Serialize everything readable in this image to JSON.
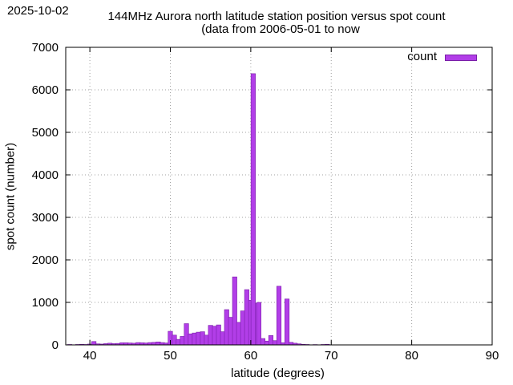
{
  "date_stamp": "2025-10-02",
  "chart_data": {
    "type": "bar",
    "title": "144MHz Aurora north latitude station position versus spot count",
    "subtitle": "(data from 2006-05-01 to now",
    "xlabel": "latitude (degrees)",
    "ylabel": "spot count (number)",
    "xlim": [
      37,
      90
    ],
    "ylim": [
      0,
      7000
    ],
    "xticks": [
      40,
      50,
      60,
      70,
      80,
      90
    ],
    "yticks": [
      0,
      1000,
      2000,
      3000,
      4000,
      5000,
      6000,
      7000
    ],
    "grid": true,
    "legend_position": "top-right",
    "bar_color": "#b23ee8",
    "series": [
      {
        "name": "count",
        "points": [
          [
            37.5,
            10
          ],
          [
            38.5,
            10
          ],
          [
            39.0,
            15
          ],
          [
            39.5,
            10
          ],
          [
            40.0,
            20
          ],
          [
            40.5,
            80
          ],
          [
            41.0,
            25
          ],
          [
            41.5,
            20
          ],
          [
            42.0,
            30
          ],
          [
            42.5,
            40
          ],
          [
            43.0,
            30
          ],
          [
            43.5,
            35
          ],
          [
            44.0,
            50
          ],
          [
            44.5,
            50
          ],
          [
            45.0,
            45
          ],
          [
            45.5,
            40
          ],
          [
            46.0,
            55
          ],
          [
            46.5,
            50
          ],
          [
            47.0,
            45
          ],
          [
            47.5,
            55
          ],
          [
            48.0,
            60
          ],
          [
            48.5,
            70
          ],
          [
            49.0,
            55
          ],
          [
            49.5,
            45
          ],
          [
            50.0,
            320
          ],
          [
            50.5,
            230
          ],
          [
            51.0,
            130
          ],
          [
            51.5,
            200
          ],
          [
            52.0,
            500
          ],
          [
            52.5,
            260
          ],
          [
            53.0,
            280
          ],
          [
            53.5,
            300
          ],
          [
            54.0,
            310
          ],
          [
            54.5,
            230
          ],
          [
            55.0,
            460
          ],
          [
            55.5,
            440
          ],
          [
            56.0,
            470
          ],
          [
            56.5,
            310
          ],
          [
            57.0,
            830
          ],
          [
            57.5,
            650
          ],
          [
            58.0,
            1600
          ],
          [
            58.5,
            530
          ],
          [
            59.0,
            800
          ],
          [
            59.5,
            1300
          ],
          [
            60.0,
            1050
          ],
          [
            60.5,
            980
          ],
          [
            60.3,
            6380
          ],
          [
            61.0,
            1000
          ],
          [
            61.5,
            150
          ],
          [
            62.0,
            90
          ],
          [
            62.5,
            220
          ],
          [
            63.0,
            100
          ],
          [
            63.5,
            1380
          ],
          [
            64.0,
            50
          ],
          [
            64.5,
            1080
          ],
          [
            65.0,
            60
          ],
          [
            65.5,
            40
          ],
          [
            66.0,
            25
          ],
          [
            66.5,
            15
          ],
          [
            67.0,
            10
          ],
          [
            68.0,
            8
          ],
          [
            69.0,
            10
          ],
          [
            69.5,
            15
          ]
        ]
      }
    ]
  }
}
